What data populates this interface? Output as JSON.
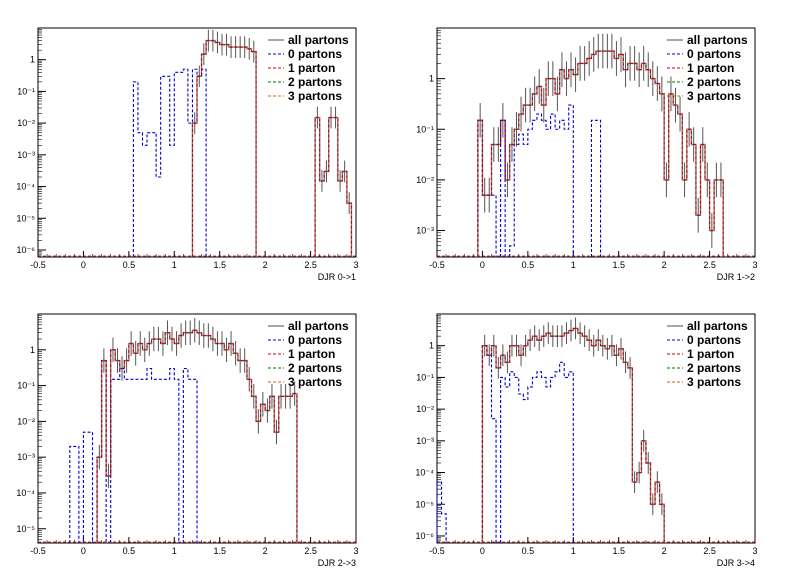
{
  "chart_data": [
    {
      "type": "line",
      "xlabel": "DJR 0->1",
      "xlim": [
        -0.5,
        3
      ],
      "ylim": [
        6e-07,
        10
      ],
      "yscale": "log",
      "x_ticks": [
        "-0.5",
        "0",
        "0.5",
        "1",
        "1.5",
        "2",
        "2.5",
        "3"
      ],
      "y_ticks": [
        "10^-6",
        "10^-5",
        "10^-4",
        "10^-3",
        "10^-2",
        "10^-1",
        "1"
      ],
      "legend": [
        "all partons",
        "0 partons",
        "1 parton",
        "2 partons",
        "3 partons"
      ],
      "legend_position": "top-right",
      "series": [
        {
          "name": "all partons",
          "color": "#808080",
          "x": [
            1.2,
            1.25,
            1.3,
            1.35,
            1.4,
            1.45,
            1.5,
            1.55,
            1.6,
            1.65,
            1.7,
            1.75,
            1.8,
            1.85,
            2.55,
            2.6,
            2.65,
            2.7,
            2.75,
            2.8,
            2.85,
            2.9
          ],
          "y": [
            0.01,
            0.3,
            1.5,
            4,
            4,
            3.5,
            3,
            3,
            2.5,
            2.5,
            2.5,
            2.5,
            2.2,
            1.8,
            0.015,
            0.00015,
            0.0003,
            0.015,
            0.015,
            0.00015,
            0.0003,
            3e-05
          ]
        },
        {
          "name": "0 partons",
          "color": "#0000cc",
          "x": [
            0.55,
            0.6,
            0.65,
            0.7,
            0.75,
            0.8,
            0.85,
            0.9,
            0.95,
            1.0,
            1.05,
            1.1,
            1.15,
            1.2,
            1.25,
            1.3
          ],
          "y": [
            0.2,
            0.005,
            0.002,
            0.005,
            0.005,
            0.0002,
            0.3,
            0.3,
            0.002,
            0.4,
            0.4,
            0.5,
            0.01,
            0.5,
            0.3,
            0.5
          ]
        },
        {
          "name": "1 parton",
          "color": "#cc0000",
          "x": [
            1.2,
            1.25,
            1.3,
            1.35,
            1.4,
            1.45,
            1.5,
            1.55,
            1.6,
            1.65,
            1.7,
            1.75,
            1.8,
            1.85,
            2.55,
            2.6,
            2.65,
            2.7,
            2.75,
            2.8,
            2.85,
            2.9
          ],
          "y": [
            0.01,
            0.3,
            1.5,
            4,
            4,
            3.5,
            3,
            3,
            2.5,
            2.5,
            2.5,
            2.5,
            2.2,
            1.8,
            0.015,
            0.00015,
            0.0003,
            0.015,
            0.015,
            0.00015,
            0.0003,
            3e-05
          ]
        },
        {
          "name": "2 partons",
          "color": "#007700",
          "x": [],
          "y": []
        },
        {
          "name": "3 partons",
          "color": "#cc6600",
          "x": [],
          "y": []
        }
      ]
    },
    {
      "type": "line",
      "xlabel": "DJR 1->2",
      "xlim": [
        -0.5,
        3
      ],
      "ylim": [
        0.0003,
        10
      ],
      "yscale": "log",
      "x_ticks": [
        "-0.5",
        "0",
        "0.5",
        "1",
        "1.5",
        "2",
        "2.5",
        "3"
      ],
      "y_ticks": [
        "10^-3",
        "10^-2",
        "10^-1",
        "1"
      ],
      "legend": [
        "all partons",
        "0 partons",
        "1 parton",
        "2 partons",
        "3 partons"
      ],
      "legend_position": "top-right",
      "series": [
        {
          "name": "all partons",
          "color": "#808080",
          "x": [
            -0.05,
            0.0,
            0.05,
            0.1,
            0.15,
            0.2,
            0.25,
            0.3,
            0.35,
            0.4,
            0.45,
            0.5,
            0.55,
            0.6,
            0.65,
            0.7,
            0.75,
            0.8,
            0.85,
            0.9,
            0.95,
            1.0,
            1.05,
            1.1,
            1.15,
            1.2,
            1.25,
            1.3,
            1.35,
            1.4,
            1.45,
            1.5,
            1.55,
            1.6,
            1.65,
            1.7,
            1.75,
            1.8,
            1.85,
            1.9,
            1.95,
            2.0,
            2.05,
            2.1,
            2.15,
            2.2,
            2.25,
            2.3,
            2.35,
            2.4,
            2.45,
            2.5,
            2.55,
            2.6
          ],
          "y": [
            0.15,
            0.005,
            0.005,
            0.05,
            0.05,
            0.15,
            0.01,
            0.05,
            0.1,
            0.2,
            0.3,
            0.3,
            0.5,
            0.7,
            0.3,
            1.0,
            1.0,
            0.5,
            1.5,
            1.0,
            1.5,
            1.2,
            2.0,
            2.0,
            2.5,
            3.0,
            3.5,
            3.5,
            3.5,
            3.5,
            2.5,
            3.0,
            1.5,
            2.0,
            2.0,
            1.5,
            2.0,
            1.5,
            1.0,
            0.8,
            0.5,
            0.01,
            0.5,
            0.3,
            0.2,
            0.01,
            0.1,
            0.05,
            0.002,
            0.05,
            0.01,
            0.001,
            0.01,
            0.01
          ]
        },
        {
          "name": "0 partons",
          "color": "#0000cc",
          "x": [
            -0.05,
            0.0,
            0.05,
            0.1,
            0.2,
            0.3,
            0.35,
            0.4,
            0.45,
            0.5,
            0.55,
            0.6,
            0.65,
            0.7,
            0.75,
            0.8,
            0.85,
            0.9,
            0.95,
            1.2,
            1.25
          ],
          "y": [
            0.15,
            0.005,
            0.005,
            0.005,
            0.15,
            0.0005,
            0.05,
            0.08,
            0.05,
            0.1,
            0.15,
            0.2,
            0.15,
            0.1,
            0.2,
            0.1,
            0.15,
            0.1,
            0.3,
            0.15,
            0.15
          ]
        },
        {
          "name": "1 parton",
          "color": "#cc0000",
          "x": [
            -0.05,
            0.0,
            0.05,
            0.1,
            0.15,
            0.2,
            0.25,
            0.3,
            0.35,
            0.4,
            0.45,
            0.5,
            0.55,
            0.6,
            0.65,
            0.7,
            0.75,
            0.8,
            0.85,
            0.9,
            0.95,
            1.0,
            1.05,
            1.1,
            1.15,
            1.2,
            1.25,
            1.3,
            1.35,
            1.4,
            1.45,
            1.5,
            1.55,
            1.6,
            1.65,
            1.7,
            1.75,
            1.8,
            1.85,
            1.9,
            1.95,
            2.0,
            2.05,
            2.1,
            2.15,
            2.2,
            2.25,
            2.3,
            2.35,
            2.4,
            2.45,
            2.5,
            2.55,
            2.6
          ],
          "y": [
            0.15,
            0.005,
            0.005,
            0.05,
            0.05,
            0.15,
            0.01,
            0.05,
            0.1,
            0.2,
            0.3,
            0.3,
            0.5,
            0.7,
            0.3,
            1.0,
            1.0,
            0.5,
            1.5,
            1.0,
            1.5,
            1.2,
            2.0,
            2.0,
            2.5,
            3.0,
            3.5,
            3.5,
            3.5,
            3.5,
            2.5,
            3.0,
            1.5,
            2.0,
            2.0,
            1.5,
            2.0,
            1.5,
            1.0,
            0.8,
            0.5,
            0.01,
            0.5,
            0.3,
            0.2,
            0.01,
            0.1,
            0.05,
            0.002,
            0.05,
            0.01,
            0.001,
            0.01,
            0.01
          ]
        },
        {
          "name": "2 partons",
          "color": "#007700",
          "x": [],
          "y": []
        },
        {
          "name": "3 partons",
          "color": "#cc6600",
          "x": [],
          "y": []
        }
      ]
    },
    {
      "type": "line",
      "xlabel": "DJR 2->3",
      "xlim": [
        -0.5,
        3
      ],
      "ylim": [
        4e-06,
        10
      ],
      "yscale": "log",
      "x_ticks": [
        "-0.5",
        "0",
        "0.5",
        "1",
        "1.5",
        "2",
        "2.5",
        "3"
      ],
      "y_ticks": [
        "10^-5",
        "10^-4",
        "10^-3",
        "10^-2",
        "10^-1",
        "1"
      ],
      "legend": [
        "all partons",
        "0 partons",
        "1 parton",
        "2 partons",
        "3 partons"
      ],
      "legend_position": "top-right",
      "series": [
        {
          "name": "all partons",
          "color": "#808080",
          "x": [
            0.15,
            0.2,
            0.25,
            0.3,
            0.35,
            0.4,
            0.45,
            0.5,
            0.55,
            0.6,
            0.65,
            0.7,
            0.75,
            0.8,
            0.85,
            0.9,
            0.95,
            1.0,
            1.05,
            1.1,
            1.15,
            1.2,
            1.25,
            1.3,
            1.35,
            1.4,
            1.45,
            1.5,
            1.55,
            1.6,
            1.65,
            1.7,
            1.75,
            1.8,
            1.85,
            1.9,
            1.95,
            2.0,
            2.05,
            2.1,
            2.15,
            2.2,
            2.25,
            2.3
          ],
          "y": [
            0.001,
            0.5,
            0.0003,
            1.0,
            0.5,
            0.3,
            0.5,
            1.5,
            0.8,
            1.5,
            1.0,
            1.5,
            2.0,
            2.0,
            1.5,
            3.0,
            2.0,
            1.5,
            2.5,
            3.0,
            3.0,
            3.5,
            3.0,
            2.5,
            2.5,
            2.0,
            1.5,
            1.5,
            1.0,
            1.5,
            0.8,
            0.5,
            0.5,
            0.15,
            0.05,
            0.01,
            0.03,
            0.02,
            0.05,
            0.005,
            0.05,
            0.05,
            0.05,
            0.06
          ]
        },
        {
          "name": "0 partons",
          "color": "#0000cc",
          "x": [
            -0.15,
            -0.1,
            0.0,
            0.05,
            0.15,
            0.2,
            0.3,
            0.35,
            0.4,
            0.45,
            0.5,
            0.55,
            0.6,
            0.65,
            0.7,
            0.75,
            0.8,
            0.85,
            0.9,
            0.95,
            1.0,
            1.1,
            1.15,
            1.2
          ],
          "y": [
            0.002,
            0.002,
            0.005,
            0.005,
            0.001,
            0.5,
            0.15,
            0.15,
            0.3,
            0.15,
            0.15,
            0.15,
            0.15,
            0.15,
            0.3,
            0.15,
            0.15,
            0.15,
            0.15,
            0.3,
            0.15,
            0.3,
            0.15,
            0.15
          ]
        },
        {
          "name": "1 parton",
          "color": "#cc0000",
          "x": [
            0.15,
            0.2,
            0.25,
            0.3,
            0.35,
            0.4,
            0.45,
            0.5,
            0.55,
            0.6,
            0.65,
            0.7,
            0.75,
            0.8,
            0.85,
            0.9,
            0.95,
            1.0,
            1.05,
            1.1,
            1.15,
            1.2,
            1.25,
            1.3,
            1.35,
            1.4,
            1.45,
            1.5,
            1.55,
            1.6,
            1.65,
            1.7,
            1.75,
            1.8,
            1.85,
            1.9,
            1.95,
            2.0,
            2.05,
            2.1,
            2.15,
            2.2,
            2.25,
            2.3
          ],
          "y": [
            0.001,
            0.5,
            0.0003,
            1.0,
            0.5,
            0.3,
            0.5,
            1.5,
            0.8,
            1.5,
            1.0,
            1.5,
            2.0,
            2.0,
            1.5,
            3.0,
            2.0,
            1.5,
            2.5,
            3.0,
            3.0,
            3.5,
            3.0,
            2.5,
            2.5,
            2.0,
            1.5,
            1.5,
            1.0,
            1.5,
            0.8,
            0.5,
            0.5,
            0.15,
            0.05,
            0.01,
            0.03,
            0.02,
            0.05,
            0.005,
            0.05,
            0.05,
            0.05,
            0.06
          ]
        },
        {
          "name": "2 partons",
          "color": "#007700",
          "x": [],
          "y": []
        },
        {
          "name": "3 partons",
          "color": "#cc6600",
          "x": [],
          "y": []
        }
      ]
    },
    {
      "type": "line",
      "xlabel": "DJR 3->4",
      "xlim": [
        -0.5,
        3
      ],
      "ylim": [
        6e-07,
        10
      ],
      "yscale": "log",
      "x_ticks": [
        "-0.5",
        "0",
        "0.5",
        "1",
        "1.5",
        "2",
        "2.5",
        "3"
      ],
      "y_ticks": [
        "10^-6",
        "10^-5",
        "10^-4",
        "10^-3",
        "10^-2",
        "10^-1",
        "1"
      ],
      "legend": [
        "all partons",
        "0 partons",
        "1 parton",
        "2 partons",
        "3 partons"
      ],
      "legend_position": "top-right",
      "series": [
        {
          "name": "all partons",
          "color": "#808080",
          "x": [
            0.0,
            0.05,
            0.1,
            0.15,
            0.2,
            0.25,
            0.3,
            0.35,
            0.4,
            0.45,
            0.5,
            0.55,
            0.6,
            0.65,
            0.7,
            0.75,
            0.8,
            0.85,
            0.9,
            0.95,
            1.0,
            1.05,
            1.1,
            1.15,
            1.2,
            1.25,
            1.3,
            1.35,
            1.4,
            1.45,
            1.5,
            1.55,
            1.6,
            1.65,
            1.7,
            1.75,
            1.8,
            1.85,
            1.9,
            1.95
          ],
          "y": [
            1.0,
            0.5,
            1.0,
            0.2,
            0.5,
            0.3,
            1.0,
            1.0,
            0.5,
            1.0,
            1.5,
            2.0,
            1.5,
            2.0,
            2.5,
            2.0,
            2.0,
            2.0,
            2.5,
            3.0,
            3.5,
            2.5,
            2.0,
            1.5,
            1.0,
            1.5,
            1.0,
            0.8,
            1.0,
            0.5,
            0.8,
            0.3,
            0.2,
            5e-05,
            0.0001,
            0.001,
            0.0002,
            1e-05,
            5e-05,
            1e-05
          ]
        },
        {
          "name": "0 partons",
          "color": "#0000cc",
          "x": [
            -0.5,
            -0.45,
            0.0,
            0.05,
            0.1,
            0.2,
            0.25,
            0.3,
            0.35,
            0.4,
            0.45,
            0.5,
            0.55,
            0.6,
            0.65,
            0.7,
            0.75,
            0.8,
            0.85,
            0.9,
            0.95
          ],
          "y": [
            5e-05,
            5e-06,
            1.0,
            0.5,
            0.005,
            0.1,
            0.05,
            0.15,
            0.1,
            0.03,
            0.02,
            0.05,
            0.1,
            0.15,
            0.1,
            0.05,
            0.1,
            0.15,
            0.3,
            0.1,
            0.15
          ]
        },
        {
          "name": "1 parton",
          "color": "#cc0000",
          "x": [
            0.0,
            0.05,
            0.1,
            0.15,
            0.2,
            0.25,
            0.3,
            0.35,
            0.4,
            0.45,
            0.5,
            0.55,
            0.6,
            0.65,
            0.7,
            0.75,
            0.8,
            0.85,
            0.9,
            0.95,
            1.0,
            1.05,
            1.1,
            1.15,
            1.2,
            1.25,
            1.3,
            1.35,
            1.4,
            1.45,
            1.5,
            1.55,
            1.6,
            1.65,
            1.7,
            1.75,
            1.8,
            1.85,
            1.9,
            1.95
          ],
          "y": [
            1.0,
            0.5,
            1.0,
            0.2,
            0.5,
            0.3,
            1.0,
            1.0,
            0.5,
            1.0,
            1.5,
            2.0,
            1.5,
            2.0,
            2.5,
            2.0,
            2.0,
            2.0,
            2.5,
            3.0,
            3.5,
            2.5,
            2.0,
            1.5,
            1.0,
            1.5,
            1.0,
            0.8,
            1.0,
            0.5,
            0.8,
            0.3,
            0.2,
            5e-05,
            0.0001,
            0.001,
            0.0002,
            1e-05,
            5e-05,
            1e-05
          ]
        },
        {
          "name": "2 partons",
          "color": "#007700",
          "x": [],
          "y": []
        },
        {
          "name": "3 partons",
          "color": "#cc6600",
          "x": [],
          "y": []
        }
      ]
    }
  ]
}
